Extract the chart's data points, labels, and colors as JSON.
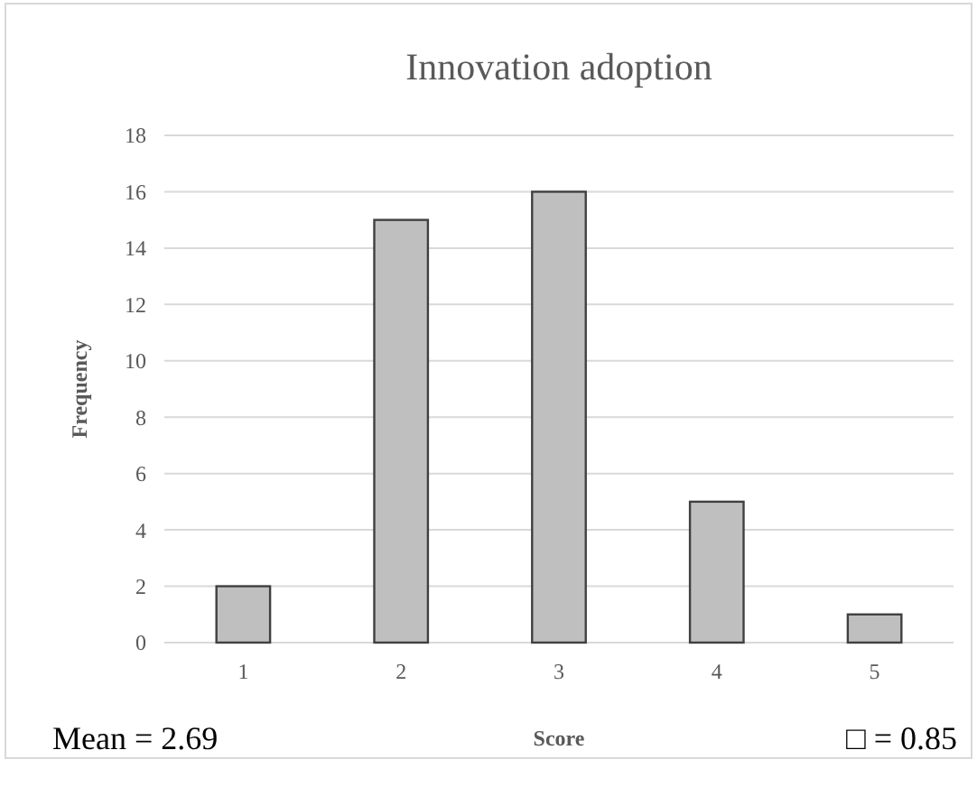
{
  "chart_data": {
    "type": "bar",
    "title": "Innovation adoption",
    "xlabel": "Score",
    "ylabel": "Frequency",
    "categories": [
      "1",
      "2",
      "3",
      "4",
      "5"
    ],
    "values": [
      2,
      15,
      16,
      5,
      1
    ],
    "color": "#bfbfbf",
    "ylim": [
      0,
      18
    ],
    "yticks": [
      0,
      2,
      4,
      6,
      8,
      10,
      12,
      14,
      16,
      18
    ],
    "grid": "y",
    "annotations": [
      "Mean = 2.69",
      "□ = 0.85"
    ]
  }
}
